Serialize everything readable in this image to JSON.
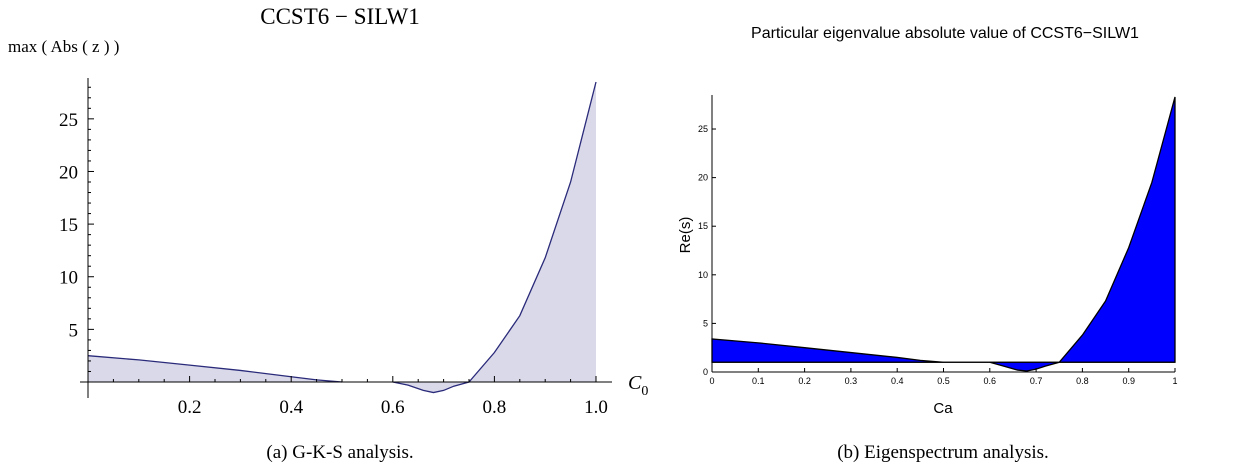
{
  "chart_data": [
    {
      "type": "area",
      "title": "CCST6 − SILW1",
      "ylabel": "max ( Abs ( z ) )",
      "xlabel": "C",
      "xlabel_subscript": "0",
      "caption": "(a) G-K-S analysis.",
      "xlim": [
        0,
        1.0
      ],
      "ylim": [
        -1,
        28.5
      ],
      "x_ticks": [
        0.2,
        0.4,
        0.6,
        0.8,
        1.0
      ],
      "x_tick_labels": [
        "0.2",
        "0.4",
        "0.6",
        "0.8",
        "1.0"
      ],
      "y_ticks": [
        5,
        10,
        15,
        20,
        25
      ],
      "y_tick_labels": [
        "5",
        "10",
        "15",
        "20",
        "25"
      ],
      "fill_baseline": 0,
      "grid": false,
      "colors": {
        "line": "#2a2a7a",
        "fill": "#d9d9ea"
      },
      "segments": [
        {
          "x": [
            0.0,
            0.1,
            0.2,
            0.3,
            0.4,
            0.45,
            0.5
          ],
          "y": [
            2.5,
            2.1,
            1.6,
            1.1,
            0.5,
            0.2,
            0.0
          ]
        },
        {
          "x": [
            0.6,
            0.63,
            0.66,
            0.68,
            0.7,
            0.72,
            0.75,
            0.8,
            0.85,
            0.9,
            0.95,
            1.0
          ],
          "y": [
            0.0,
            -0.3,
            -0.8,
            -1.0,
            -0.8,
            -0.4,
            0.0,
            2.8,
            6.3,
            11.8,
            19.0,
            28.5
          ]
        }
      ]
    },
    {
      "type": "area",
      "title": "Particular eigenvalue absolute value of CCST6−SILW1",
      "xlabel": "Ca",
      "ylabel": "Re(s)",
      "caption": "(b) Eigenspectrum analysis.",
      "xlim": [
        0,
        1
      ],
      "ylim": [
        0,
        28.5
      ],
      "x_ticks": [
        0,
        0.1,
        0.2,
        0.3,
        0.4,
        0.5,
        0.6,
        0.7,
        0.8,
        0.9,
        1
      ],
      "x_tick_labels": [
        "0",
        "0.1",
        "0.2",
        "0.3",
        "0.4",
        "0.5",
        "0.6",
        "0.7",
        "0.8",
        "0.9",
        "1"
      ],
      "y_ticks": [
        0,
        5,
        10,
        15,
        20,
        25
      ],
      "y_tick_labels": [
        "0",
        "5",
        "10",
        "15",
        "20",
        "25"
      ],
      "fill_baseline": 1,
      "grid": false,
      "colors": {
        "line": "#000000",
        "fill": "#0000ff"
      },
      "x": [
        0.0,
        0.1,
        0.2,
        0.3,
        0.4,
        0.45,
        0.5,
        0.55,
        0.6,
        0.63,
        0.66,
        0.68,
        0.7,
        0.72,
        0.75,
        0.8,
        0.85,
        0.9,
        0.95,
        1.0
      ],
      "y": [
        3.4,
        3.0,
        2.5,
        2.0,
        1.5,
        1.2,
        1.0,
        1.0,
        1.0,
        0.6,
        0.2,
        0.1,
        0.3,
        0.6,
        1.0,
        3.8,
        7.3,
        12.8,
        19.5,
        28.3
      ]
    }
  ]
}
